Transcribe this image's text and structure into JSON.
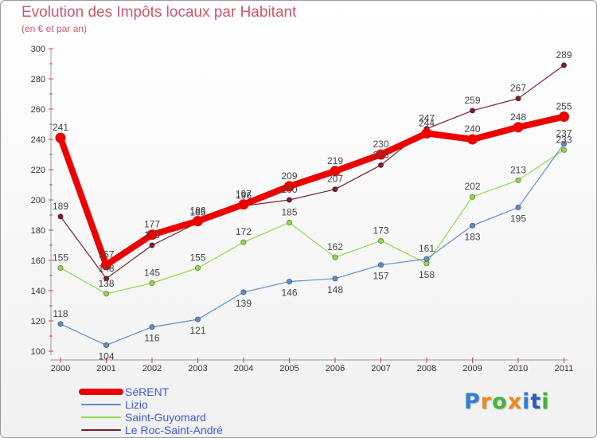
{
  "header": {
    "title": "Evolution des Impôts locaux par Habitant",
    "subtitle": "(en € et par an)"
  },
  "logo": {
    "text": "Proxiti",
    "colors": [
      "#2d7fd6",
      "#ec8a1e",
      "#45b23c",
      "#ec8a1e",
      "#2d7fd6",
      "#2a5fb8",
      "#45b23c"
    ]
  },
  "chart_data": {
    "type": "line",
    "title": "Evolution des Impôts locaux par Habitant",
    "subtitle": "(en € et par an)",
    "xlabel": "",
    "ylabel": "",
    "ylim": [
      100,
      300
    ],
    "yticks": [
      "100",
      "120",
      "140",
      "160",
      "180",
      "200",
      "220",
      "240",
      "260",
      "280",
      "300"
    ],
    "categories": [
      "2000",
      "2001",
      "2002",
      "2003",
      "2004",
      "2005",
      "2006",
      "2007",
      "2008",
      "2009",
      "2010",
      "2011"
    ],
    "legend_position": "bottom-left",
    "series": [
      {
        "name": "Le Roc-Saint-André",
        "color": "#7a1f2a",
        "values": [
          189,
          148,
          170,
          185,
          196,
          200,
          207,
          223,
          247,
          259,
          267,
          289
        ],
        "labels": [
          "189",
          "148",
          "170",
          "185",
          "196",
          "200",
          "207",
          "223",
          "247",
          "259",
          "267",
          "289"
        ]
      },
      {
        "name": "Saint-Guyomard",
        "color": "#8fd94a",
        "values": [
          155,
          138,
          145,
          155,
          172,
          185,
          162,
          173,
          158,
          202,
          213,
          233
        ],
        "labels": [
          "155",
          "138",
          "145",
          "155",
          "172",
          "185",
          "162",
          "173",
          "158",
          "202",
          "213",
          "233"
        ]
      },
      {
        "name": "Lizio",
        "color": "#5b8fc9",
        "values": [
          118,
          104,
          116,
          121,
          139,
          146,
          148,
          157,
          161,
          183,
          195,
          237
        ],
        "labels": [
          "118",
          "104",
          "116",
          "121",
          "139",
          "146",
          "148",
          "157",
          "161",
          "183",
          "195",
          "237"
        ]
      },
      {
        "name": "SéRENT",
        "color": "#ee0000",
        "values": [
          241,
          157,
          177,
          186,
          197,
          209,
          219,
          230,
          244,
          240,
          248,
          255
        ],
        "labels": [
          "241",
          "157",
          "177",
          "186",
          "197",
          "209",
          "219",
          "230",
          "244",
          "240",
          "248",
          "255"
        ]
      }
    ],
    "legend": [
      "SéRENT",
      "Lizio",
      "Saint-Guyomard",
      "Le Roc-Saint-André"
    ]
  }
}
